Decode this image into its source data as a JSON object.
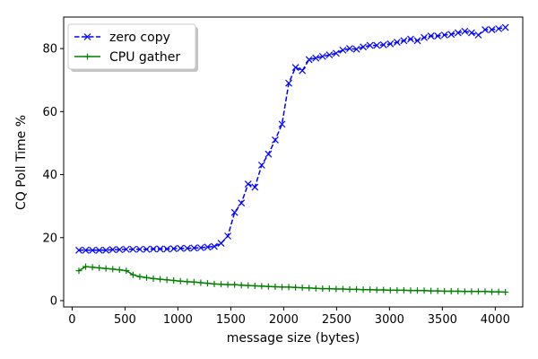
{
  "chart_data": {
    "type": "line",
    "xlabel": "message size (bytes)",
    "ylabel": "CQ Poll Time %",
    "xlim": [
      -80,
      4260
    ],
    "ylim": [
      -2,
      90
    ],
    "xticks": [
      0,
      500,
      1000,
      1500,
      2000,
      2500,
      3000,
      3500,
      4000
    ],
    "yticks": [
      0,
      20,
      40,
      60,
      80
    ],
    "grid": false,
    "legend": "top-left",
    "series": [
      {
        "name": "zero copy",
        "color": "#0000ff",
        "linestyle": "dashed",
        "marker": "x",
        "x": [
          64,
          128,
          192,
          256,
          320,
          384,
          448,
          512,
          576,
          640,
          704,
          768,
          832,
          896,
          960,
          1024,
          1088,
          1152,
          1216,
          1280,
          1344,
          1408,
          1472,
          1536,
          1600,
          1664,
          1728,
          1792,
          1856,
          1920,
          1984,
          2048,
          2112,
          2176,
          2240,
          2304,
          2368,
          2432,
          2496,
          2560,
          2624,
          2688,
          2752,
          2816,
          2880,
          2944,
          3008,
          3072,
          3136,
          3200,
          3264,
          3328,
          3392,
          3456,
          3520,
          3584,
          3648,
          3712,
          3776,
          3840,
          3904,
          3968,
          4032,
          4096
        ],
        "y": [
          16,
          16,
          16,
          16,
          16,
          16.2,
          16.2,
          16.3,
          16.3,
          16.3,
          16.3,
          16.4,
          16.4,
          16.4,
          16.5,
          16.6,
          16.6,
          16.7,
          16.8,
          17,
          17.2,
          18.2,
          20.5,
          28,
          31,
          37,
          36,
          43,
          46.5,
          51,
          56,
          69,
          74,
          73,
          76.5,
          77,
          77.5,
          78,
          78.5,
          79.5,
          80,
          79.8,
          80.5,
          81,
          81,
          81.2,
          81.5,
          82,
          82.5,
          83,
          82.5,
          83.5,
          84,
          84,
          84.3,
          84.5,
          85,
          85.5,
          85,
          84.3,
          86,
          86,
          86.3,
          86.7
        ]
      },
      {
        "name": "CPU gather",
        "color": "#008000",
        "linestyle": "solid",
        "marker": "+",
        "x": [
          64,
          128,
          192,
          256,
          320,
          384,
          448,
          512,
          576,
          640,
          704,
          768,
          832,
          896,
          960,
          1024,
          1088,
          1152,
          1216,
          1280,
          1344,
          1408,
          1472,
          1536,
          1600,
          1664,
          1728,
          1792,
          1856,
          1920,
          1984,
          2048,
          2112,
          2176,
          2240,
          2304,
          2368,
          2432,
          2496,
          2560,
          2624,
          2688,
          2752,
          2816,
          2880,
          2944,
          3008,
          3072,
          3136,
          3200,
          3264,
          3328,
          3392,
          3456,
          3520,
          3584,
          3648,
          3712,
          3776,
          3840,
          3904,
          3968,
          4032,
          4096
        ],
        "y": [
          9.5,
          10.8,
          10.6,
          10.4,
          10.2,
          10,
          9.8,
          9.5,
          8.2,
          7.6,
          7.3,
          7,
          6.8,
          6.6,
          6.4,
          6.2,
          6,
          5.9,
          5.7,
          5.5,
          5.3,
          5.2,
          5.1,
          5.1,
          4.9,
          4.8,
          4.7,
          4.6,
          4.5,
          4.4,
          4.3,
          4.3,
          4.2,
          4.1,
          4,
          3.9,
          3.8,
          3.8,
          3.7,
          3.7,
          3.6,
          3.6,
          3.5,
          3.5,
          3.4,
          3.4,
          3.3,
          3.3,
          3.3,
          3.2,
          3.2,
          3.2,
          3.1,
          3.1,
          3,
          3,
          3,
          2.9,
          2.9,
          2.9,
          2.9,
          2.8,
          2.8,
          2.7
        ]
      }
    ]
  }
}
